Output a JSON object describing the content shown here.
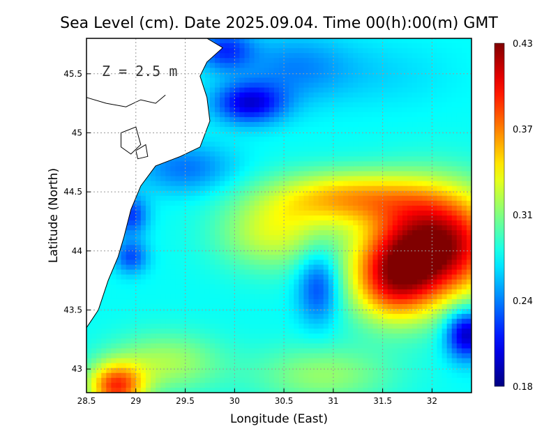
{
  "chart_data": {
    "type": "heatmap",
    "title": "Sea Level (cm). Date 2025.09.04. Time 00(h):00(m) GMT",
    "xlabel": "Longitude (East)",
    "ylabel": "Latitude (North)",
    "xlim": [
      28.5,
      32.4
    ],
    "ylim": [
      42.8,
      45.8
    ],
    "xticks": [
      "28.5",
      "29",
      "29.5",
      "30",
      "30.5",
      "31",
      "31.5",
      "32"
    ],
    "yticks": [
      "43",
      "43.5",
      "44",
      "44.5",
      "45",
      "45.5"
    ],
    "annotation": "Z = 2.5 m",
    "grid": true,
    "colorbar": {
      "min": 0.18,
      "max": 0.43,
      "ticks": [
        "0.43",
        "0.37",
        "0.31",
        "0.24",
        "0.18"
      ],
      "colormap": "jet"
    },
    "field": {
      "background": 0.275,
      "features": [
        {
          "lon": 32.05,
          "lat": 44.05,
          "value": 0.43,
          "sx": 0.45,
          "sy": 0.32
        },
        {
          "lon": 31.15,
          "lat": 44.45,
          "value": 0.35,
          "sx": 0.55,
          "sy": 0.16
        },
        {
          "lon": 31.6,
          "lat": 43.75,
          "value": 0.37,
          "sx": 0.3,
          "sy": 0.25
        },
        {
          "lon": 30.4,
          "lat": 44.15,
          "value": 0.325,
          "sx": 0.4,
          "sy": 0.22
        },
        {
          "lon": 28.8,
          "lat": 42.85,
          "value": 0.38,
          "sx": 0.2,
          "sy": 0.14
        },
        {
          "lon": 29.3,
          "lat": 43.05,
          "value": 0.315,
          "sx": 0.4,
          "sy": 0.18
        },
        {
          "lon": 30.9,
          "lat": 42.95,
          "value": 0.31,
          "sx": 0.5,
          "sy": 0.18
        },
        {
          "lon": 30.85,
          "lat": 43.7,
          "value": 0.225,
          "sx": 0.15,
          "sy": 0.22
        },
        {
          "lon": 30.15,
          "lat": 45.25,
          "value": 0.205,
          "sx": 0.25,
          "sy": 0.12
        },
        {
          "lon": 32.35,
          "lat": 43.3,
          "value": 0.19,
          "sx": 0.15,
          "sy": 0.15
        },
        {
          "lon": 29.5,
          "lat": 44.7,
          "value": 0.24,
          "sx": 0.35,
          "sy": 0.15
        },
        {
          "lon": 28.95,
          "lat": 44.3,
          "value": 0.225,
          "sx": 0.12,
          "sy": 0.12
        },
        {
          "lon": 28.95,
          "lat": 43.95,
          "value": 0.23,
          "sx": 0.12,
          "sy": 0.1
        },
        {
          "lon": 31.5,
          "lat": 45.5,
          "value": 0.265,
          "sx": 0.5,
          "sy": 0.2
        },
        {
          "lon": 30.6,
          "lat": 45.55,
          "value": 0.245,
          "sx": 0.4,
          "sy": 0.2
        },
        {
          "lon": 29.9,
          "lat": 45.7,
          "value": 0.225,
          "sx": 0.2,
          "sy": 0.12
        }
      ]
    },
    "coastline": {
      "land": [
        [
          28.5,
          45.8
        ],
        [
          29.72,
          45.8
        ],
        [
          29.88,
          45.72
        ],
        [
          29.72,
          45.6
        ],
        [
          29.65,
          45.48
        ],
        [
          29.72,
          45.3
        ],
        [
          29.75,
          45.1
        ],
        [
          29.65,
          44.88
        ],
        [
          29.45,
          44.8
        ],
        [
          29.2,
          44.72
        ],
        [
          29.05,
          44.55
        ],
        [
          28.95,
          44.35
        ],
        [
          28.88,
          44.12
        ],
        [
          28.82,
          43.95
        ],
        [
          28.72,
          43.75
        ],
        [
          28.62,
          43.5
        ],
        [
          28.5,
          43.35
        ]
      ],
      "lakes": [
        [
          [
            28.85,
            45.0
          ],
          [
            29.0,
            45.05
          ],
          [
            29.05,
            44.9
          ],
          [
            28.95,
            44.82
          ],
          [
            28.85,
            44.88
          ]
        ],
        [
          [
            29.0,
            44.85
          ],
          [
            29.1,
            44.9
          ],
          [
            29.12,
            44.8
          ],
          [
            29.02,
            44.78
          ]
        ]
      ],
      "land_lines": [
        [
          [
            28.5,
            45.3
          ],
          [
            28.7,
            45.25
          ],
          [
            28.9,
            45.22
          ],
          [
            29.05,
            45.28
          ],
          [
            29.2,
            45.25
          ],
          [
            29.3,
            45.32
          ]
        ]
      ]
    }
  }
}
